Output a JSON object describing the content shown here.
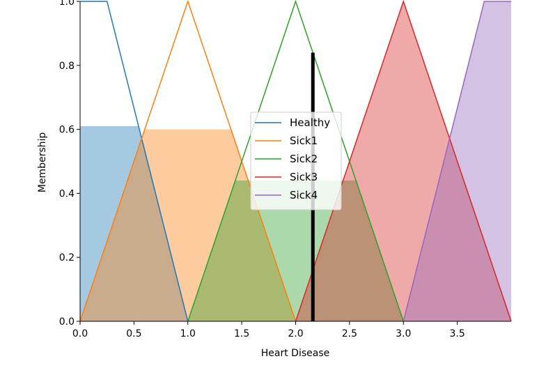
{
  "chart_data": {
    "type": "area",
    "xlabel": "Heart Disease",
    "ylabel": "Membership",
    "xlim": [
      0,
      4
    ],
    "ylim": [
      0,
      1
    ],
    "x_ticks": [
      "0.0",
      "0.5",
      "1.0",
      "1.5",
      "2.0",
      "2.5",
      "3.0",
      "3.5"
    ],
    "y_ticks": [
      "0.0",
      "0.2",
      "0.4",
      "0.6",
      "0.8",
      "1.0"
    ],
    "grid": false,
    "legend_position": "center",
    "series": [
      {
        "name": "Healthy",
        "color": "#1f77b4",
        "points": [
          [
            0,
            1
          ],
          [
            0.25,
            1
          ],
          [
            1,
            0
          ]
        ]
      },
      {
        "name": "Sick1",
        "color": "#ff7f0e",
        "points": [
          [
            0,
            0
          ],
          [
            1,
            1
          ],
          [
            2,
            0
          ]
        ]
      },
      {
        "name": "Sick2",
        "color": "#2ca02c",
        "points": [
          [
            1,
            0
          ],
          [
            2,
            1
          ],
          [
            3,
            0
          ]
        ]
      },
      {
        "name": "Sick3",
        "color": "#d62728",
        "points": [
          [
            2,
            0
          ],
          [
            3,
            1
          ],
          [
            4,
            0
          ]
        ]
      },
      {
        "name": "Sick4",
        "color": "#9467bd",
        "points": [
          [
            3,
            0
          ],
          [
            3.75,
            1
          ],
          [
            4,
            1
          ]
        ]
      }
    ],
    "activations": [
      {
        "series": "Healthy",
        "level": 0.61
      },
      {
        "series": "Sick1",
        "level": 0.6
      },
      {
        "series": "Sick2",
        "level": 0.44
      },
      {
        "series": "Sick3",
        "level": 1.0
      },
      {
        "series": "Sick4",
        "level": 1.0
      }
    ],
    "crisp_output": {
      "x": 2.16,
      "y": 0.84,
      "color": "#000000"
    }
  }
}
